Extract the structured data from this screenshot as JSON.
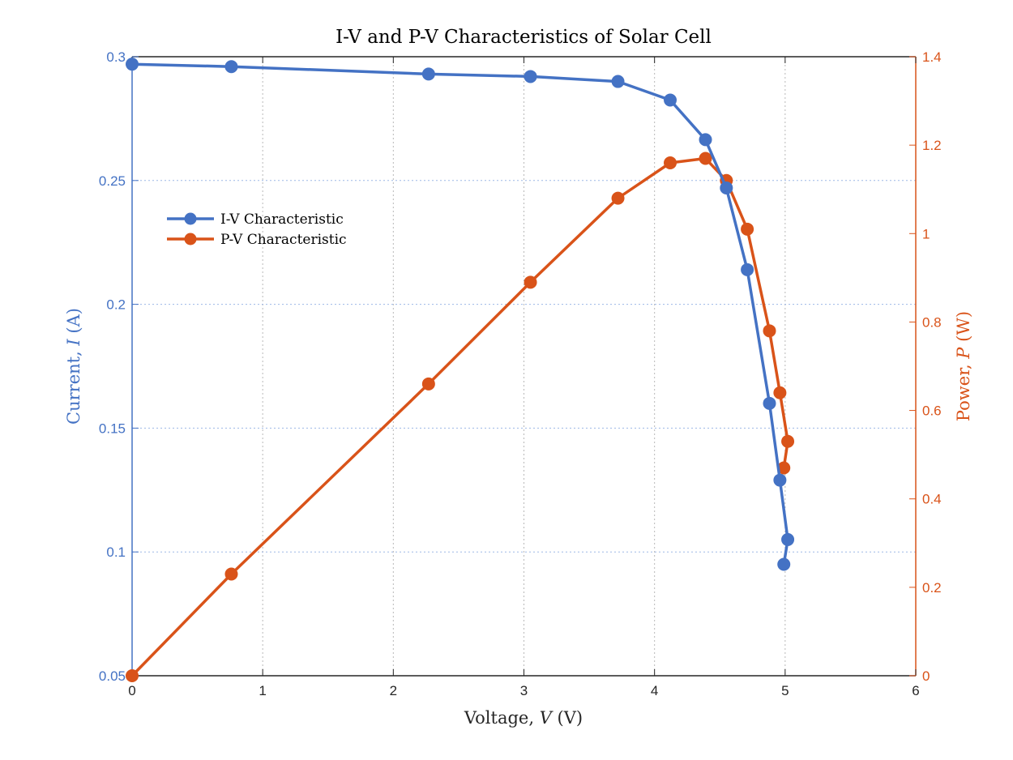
{
  "colors": {
    "iv": "#4472C4",
    "pv": "#D95319",
    "axis": "#262626",
    "grid": "#B8B8B8",
    "grid_iv": "#9DB7E6"
  },
  "chart_data": {
    "type": "line",
    "title": "I-V and P-V Characteristics of Solar Cell",
    "xlabel": "Voltage, V (V)",
    "xlabel_parts": [
      "Voltage, ",
      "V",
      " (V)"
    ],
    "ylabel_left": "Current, I (A)",
    "ylabel_left_parts": [
      "Current, ",
      "I",
      " (A)"
    ],
    "ylabel_right": "Power, P (W)",
    "ylabel_right_parts": [
      "Power, ",
      "P",
      " (W)"
    ],
    "xlim": [
      0,
      6
    ],
    "ylim_left": [
      0.05,
      0.3
    ],
    "ylim_right": [
      0,
      1.4
    ],
    "x_ticks": [
      "0",
      "1",
      "2",
      "3",
      "4",
      "5",
      "6"
    ],
    "y_left_ticks": [
      "0.05",
      "0.1",
      "0.15",
      "0.2",
      "0.25",
      "0.3"
    ],
    "y_right_ticks": [
      "0",
      "0.2",
      "0.4",
      "0.6",
      "0.8",
      "1",
      "1.2",
      "1.4"
    ],
    "grid": true,
    "legend_position": "upper-left",
    "series": [
      {
        "name": "I-V Characteristic",
        "axis": "left",
        "x": [
          0,
          0.76,
          2.27,
          3.05,
          3.72,
          4.12,
          4.39,
          4.55,
          4.71,
          4.88,
          4.96,
          5.02,
          4.99
        ],
        "y": [
          0.297,
          0.296,
          0.293,
          0.292,
          0.29,
          0.2825,
          0.2665,
          0.247,
          0.214,
          0.16,
          0.129,
          0.105,
          0.095
        ]
      },
      {
        "name": "P-V Characteristic",
        "axis": "right",
        "x": [
          0,
          0.76,
          2.27,
          3.05,
          3.72,
          4.12,
          4.39,
          4.55,
          4.71,
          4.88,
          4.96,
          5.02,
          4.99
        ],
        "y": [
          0,
          0.23,
          0.66,
          0.89,
          1.08,
          1.16,
          1.17,
          1.12,
          1.01,
          0.78,
          0.64,
          0.53,
          0.47
        ]
      }
    ]
  }
}
